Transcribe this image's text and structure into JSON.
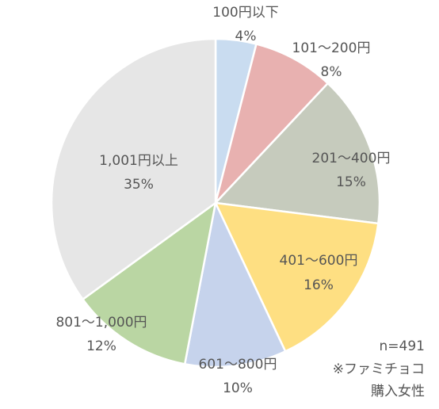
{
  "chart_data": {
    "type": "pie",
    "categories": [
      "100円以下",
      "101～200円",
      "201～400円",
      "401～600円",
      "601～800円",
      "801～1,000円",
      "1,001円以上"
    ],
    "values": [
      4,
      8,
      15,
      16,
      10,
      12,
      35
    ],
    "value_labels": [
      "4%",
      "8%",
      "15%",
      "16%",
      "10%",
      "12%",
      "35%"
    ],
    "colors": [
      "#c9dcf0",
      "#e8b1b0",
      "#c6cbbd",
      "#fedf82",
      "#c6d3ec",
      "#bad6a3",
      "#e6e6e6"
    ],
    "annotations": [
      "n=491",
      "※ファミチョコ",
      "購入女性"
    ]
  }
}
